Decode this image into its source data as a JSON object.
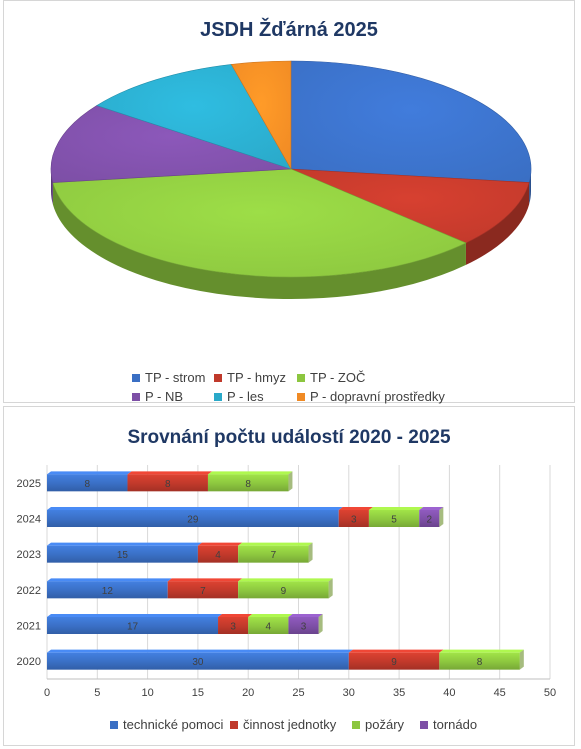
{
  "chart_data": [
    {
      "type": "pie",
      "title": "JSDH Žďárná 2025",
      "categories": [
        "TP - strom",
        "TP - hmyz",
        "TP - ZOČ",
        "P - NB",
        "P - les",
        "P - dopravní prostředky"
      ],
      "values": [
        27,
        10,
        36,
        12,
        11,
        4
      ],
      "colors": [
        "#3a6fc4",
        "#c0392b",
        "#8cc63f",
        "#7d4fa6",
        "#2aa9c9",
        "#f08a24"
      ],
      "legend_position": "bottom"
    },
    {
      "type": "bar",
      "orientation": "horizontal",
      "stacked": true,
      "title": "Srovnání počtu událostí 2020 - 2025",
      "categories": [
        "2025",
        "2024",
        "2023",
        "2022",
        "2021",
        "2020"
      ],
      "series": [
        {
          "name": "technické pomoci",
          "values": [
            8,
            29,
            15,
            12,
            17,
            30
          ],
          "color": "#3a6fc4"
        },
        {
          "name": "činnost jednotky",
          "values": [
            8,
            3,
            4,
            7,
            3,
            9
          ],
          "color": "#c0392b"
        },
        {
          "name": "požáry",
          "values": [
            8,
            5,
            7,
            9,
            4,
            8
          ],
          "color": "#8cc63f"
        },
        {
          "name": "tornádo",
          "values": [
            0,
            2,
            0,
            0,
            3,
            0
          ],
          "color": "#7d4fa6"
        }
      ],
      "xlim": [
        0,
        50
      ],
      "xticks": [
        0,
        5,
        10,
        15,
        20,
        25,
        30,
        35,
        40,
        45,
        50
      ],
      "grid": true,
      "legend_position": "bottom"
    }
  ]
}
